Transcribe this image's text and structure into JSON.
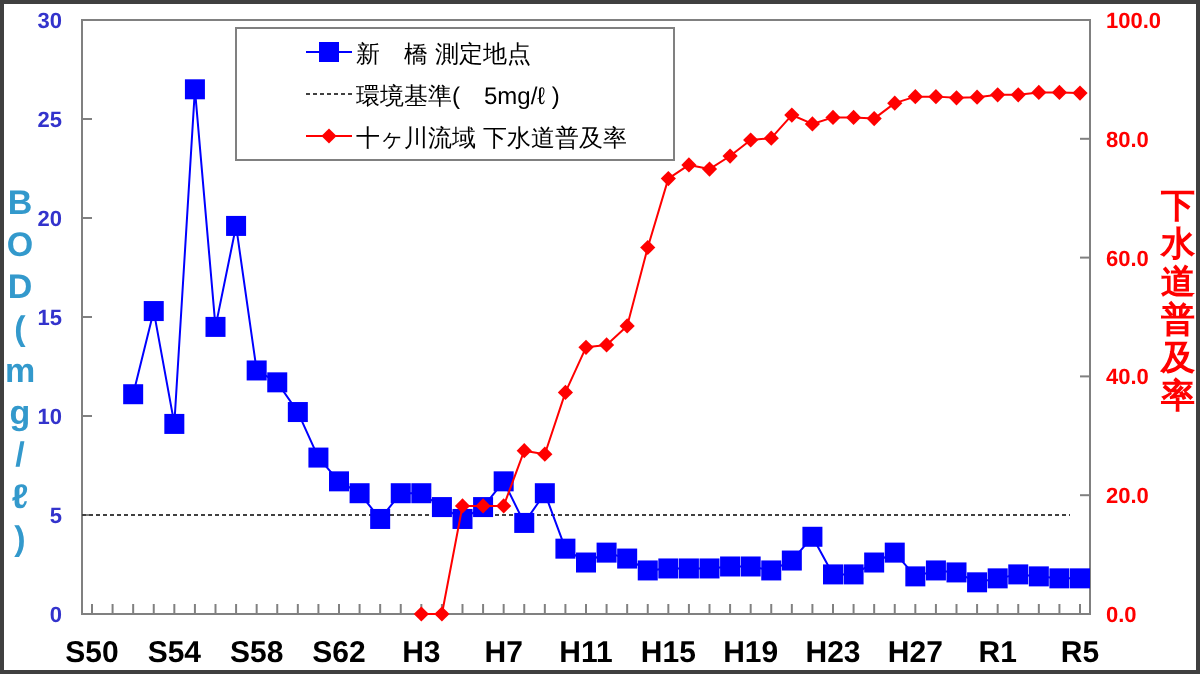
{
  "chart_data": {
    "type": "line",
    "categories": [
      "S50",
      null,
      null,
      null,
      "S54",
      null,
      null,
      null,
      "S58",
      null,
      null,
      null,
      "S62",
      null,
      null,
      null,
      "H3",
      null,
      null,
      null,
      "H7",
      null,
      null,
      null,
      "H11",
      null,
      null,
      null,
      "H15",
      null,
      null,
      null,
      "H19",
      null,
      null,
      null,
      "H23",
      null,
      null,
      null,
      "H27",
      null,
      null,
      null,
      "R1",
      null,
      null,
      null,
      "R5"
    ],
    "series": [
      {
        "name": "新　橋 測定地点",
        "color": "#0000ff",
        "marker": "square",
        "values": [
          null,
          null,
          11.1,
          15.3,
          9.6,
          26.5,
          14.5,
          19.6,
          12.3,
          11.7,
          10.2,
          7.9,
          6.7,
          6.1,
          4.8,
          6.1,
          6.1,
          5.4,
          4.8,
          5.4,
          6.7,
          4.6,
          6.1,
          3.3,
          2.6,
          3.1,
          2.8,
          2.2,
          2.3,
          2.3,
          2.3,
          2.4,
          2.4,
          2.2,
          2.7,
          3.9,
          2.0,
          2.0,
          2.6,
          3.1,
          1.9,
          2.2,
          2.1,
          1.6,
          1.8,
          2.0,
          1.9,
          1.8,
          1.8
        ]
      },
      {
        "name": "十ヶ川流域 下水道普及率",
        "color": "#ff0000",
        "marker": "diamond",
        "axis": "y2",
        "values": [
          null,
          null,
          null,
          null,
          null,
          null,
          null,
          null,
          null,
          null,
          null,
          null,
          null,
          null,
          null,
          null,
          0,
          0,
          18.2,
          18.2,
          18.2,
          27.5,
          26.9,
          37.3,
          44.9,
          45.3,
          48.5,
          61.7,
          73.3,
          75.6,
          74.9,
          77.1,
          79.8,
          80.1,
          84.0,
          82.5,
          83.6,
          83.6,
          83.4,
          86.0,
          87.1,
          87.1,
          86.9,
          87.0,
          87.4,
          87.4,
          87.8,
          87.8,
          87.7
        ]
      }
    ],
    "ylabel": "BOD(mg/ℓ)",
    "y2label": "下水道普及率",
    "ylim": [
      0,
      30
    ],
    "yticks": [
      0,
      5,
      10,
      15,
      20,
      25,
      30
    ],
    "y2lim": [
      0,
      100
    ],
    "y2ticks": [
      {
        "value": 0,
        "label": "0.0"
      },
      {
        "value": 20,
        "label": "20.0"
      },
      {
        "value": 40,
        "label": "40.0"
      },
      {
        "value": 60,
        "label": "60.0"
      },
      {
        "value": 80,
        "label": "80.0"
      },
      {
        "value": 100,
        "label": "100.0"
      }
    ],
    "ref_lines": [
      {
        "axis": "y",
        "value": 5,
        "label": "環境基準(　5mg/ℓ )",
        "color": "#404040",
        "line_style": "dotted"
      }
    ],
    "legend": "top left"
  }
}
